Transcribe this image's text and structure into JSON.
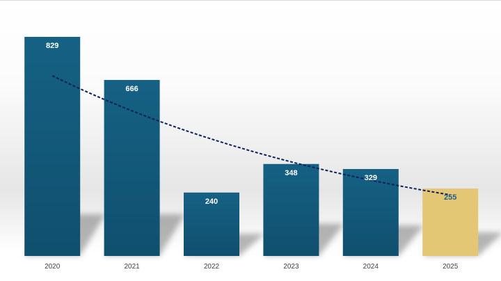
{
  "chart_data": {
    "type": "bar",
    "categories": [
      "2020",
      "2021",
      "2022",
      "2023",
      "2024",
      "2025"
    ],
    "values": [
      829,
      666,
      240,
      348,
      329,
      255
    ],
    "highlight_category": "2025",
    "title": "",
    "xlabel": "",
    "ylabel": "",
    "ylim": [
      0,
      829
    ],
    "trendline": {
      "type": "exponential",
      "style": "dashed",
      "start_value": 682,
      "end_value": 231
    },
    "grid": false,
    "legend": "none",
    "colors": {
      "bar": "#135f82",
      "highlight_bar": "#e3c775",
      "trendline": "#0b1f5c",
      "value_label": "#ffffff",
      "highlight_value_label": "#1f5f8a"
    }
  }
}
